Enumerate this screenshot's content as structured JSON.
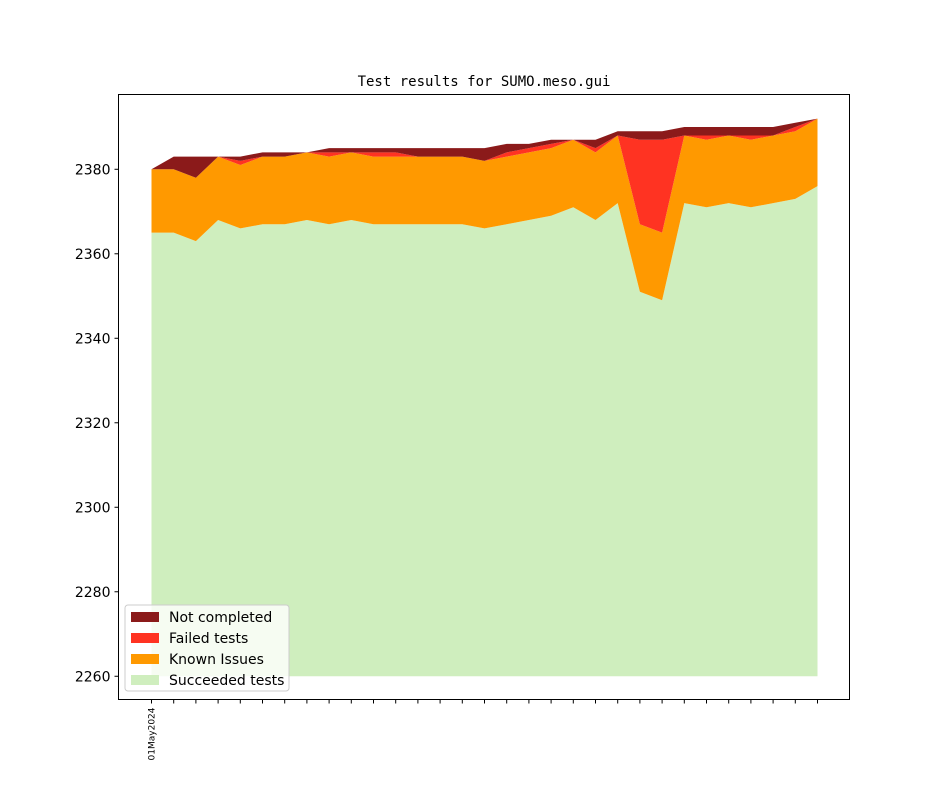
{
  "chart_data": {
    "type": "area",
    "stacked": true,
    "title": "Test results for SUMO.meso.gui",
    "xlabel": "",
    "ylabel": "",
    "ylim": [
      2254.5,
      2397.7
    ],
    "yticks": [
      2260,
      2280,
      2300,
      2320,
      2340,
      2360,
      2380
    ],
    "x_count": 31,
    "x_tick_labels": [
      {
        "index": 0,
        "label": "01May2024"
      }
    ],
    "baseline": 2260,
    "grid": false,
    "legend_position": "lower-left",
    "series": [
      {
        "name": "Succeeded tests",
        "color": "#cfeebe",
        "top": [
          2365,
          2365,
          2363,
          2368,
          2366,
          2367,
          2367,
          2368,
          2367,
          2368,
          2367,
          2367,
          2367,
          2367,
          2367,
          2366,
          2367,
          2368,
          2369,
          2371,
          2368,
          2372,
          2351,
          2349,
          2372,
          2371,
          2372,
          2371,
          2372,
          2373,
          2376
        ]
      },
      {
        "name": "Known Issues",
        "color": "#ff9900",
        "top": [
          2380,
          2380,
          2378,
          2383,
          2381,
          2383,
          2383,
          2384,
          2383,
          2384,
          2383,
          2383,
          2383,
          2383,
          2383,
          2382,
          2383,
          2384,
          2385,
          2387,
          2384,
          2388,
          2367,
          2365,
          2388,
          2387,
          2388,
          2387,
          2388,
          2389,
          2392
        ]
      },
      {
        "name": "Failed tests",
        "color": "#ff3322",
        "top": [
          2380,
          2380,
          2378,
          2383,
          2382,
          2383,
          2383,
          2384,
          2384,
          2384,
          2384,
          2384,
          2383,
          2383,
          2383,
          2382,
          2384,
          2385,
          2386,
          2387,
          2385,
          2388,
          2387,
          2387,
          2388,
          2388,
          2388,
          2388,
          2388,
          2390,
          2392
        ]
      },
      {
        "name": "Not completed",
        "color": "#8b1a1a",
        "top": [
          2380,
          2383,
          2383,
          2383,
          2383,
          2384,
          2384,
          2384,
          2385,
          2385,
          2385,
          2385,
          2385,
          2385,
          2385,
          2385,
          2386,
          2386,
          2387,
          2387,
          2387,
          2389,
          2389,
          2389,
          2390,
          2390,
          2390,
          2390,
          2390,
          2391,
          2392
        ]
      }
    ],
    "legend_order": [
      "Not completed",
      "Failed tests",
      "Known Issues",
      "Succeeded tests"
    ]
  }
}
